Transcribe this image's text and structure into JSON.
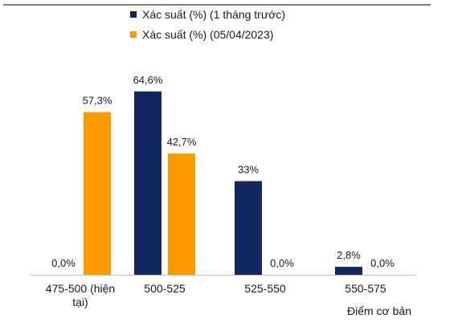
{
  "chart_data": {
    "type": "bar",
    "categories": [
      "475-500 (hiện tại)",
      "500-525",
      "525-550",
      "550-575"
    ],
    "category_lines": [
      [
        "475-500 (hiện",
        "tại)"
      ],
      [
        "500-525"
      ],
      [
        "525-550"
      ],
      [
        "550-575"
      ]
    ],
    "series": [
      {
        "name": "Xác suất (%) (1 tháng trước)",
        "color": "#12275f",
        "values": [
          0.0,
          64.6,
          33.0,
          2.8
        ],
        "labels": [
          "0,0%",
          "64,6%",
          "33%",
          "2,8%"
        ]
      },
      {
        "name": "Xác suất (%) (05/04/2023)",
        "color": "#ff9900",
        "values": [
          57.3,
          42.7,
          0.0,
          0.0
        ],
        "labels": [
          "57,3%",
          "42,7%",
          "0,0%",
          "0,0%"
        ]
      }
    ],
    "xlabel": "Điểm cơ bản",
    "ylabel": "",
    "ylim": [
      0,
      70
    ],
    "legend_position": "top",
    "grid": false
  }
}
